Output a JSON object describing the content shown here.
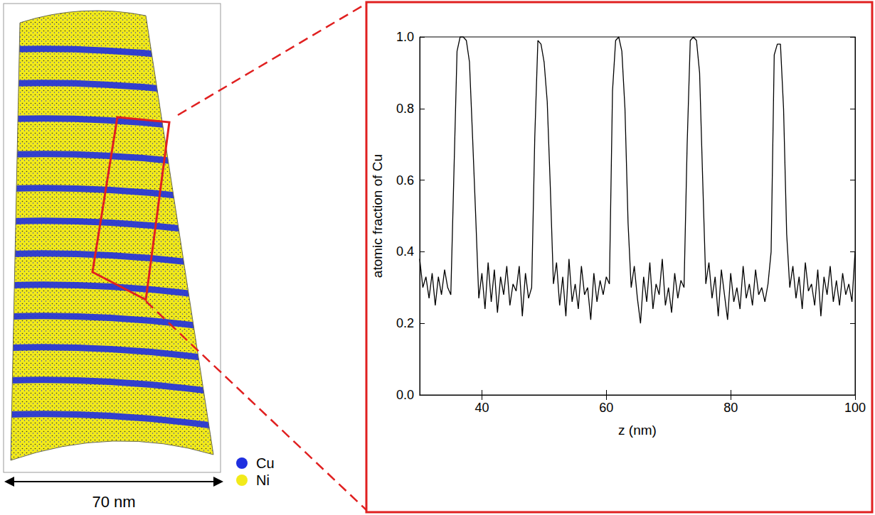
{
  "chart_data": {
    "type": "line",
    "x_label": "z (nm)",
    "y_label": "atomic fraction of Cu",
    "color": "#000000",
    "x": [
      30,
      30.5,
      31,
      31.5,
      32,
      32.5,
      33,
      33.5,
      34,
      34.5,
      35,
      35.5,
      36,
      36.5,
      37,
      37.5,
      38,
      38.5,
      39,
      39.5,
      40,
      40.5,
      41,
      41.5,
      42,
      42.5,
      43,
      43.5,
      44,
      44.5,
      45,
      45.5,
      46,
      46.5,
      47,
      47.5,
      48,
      48.5,
      49,
      49.5,
      50,
      50.5,
      51,
      51.5,
      52,
      52.5,
      53,
      53.5,
      54,
      54.5,
      55,
      55.5,
      56,
      56.5,
      57,
      57.5,
      58,
      58.5,
      59,
      59.5,
      60,
      60.5,
      61,
      61.5,
      62,
      62.5,
      63,
      63.5,
      64,
      64.5,
      65,
      65.5,
      66,
      66.5,
      67,
      67.5,
      68,
      68.5,
      69,
      69.5,
      70,
      70.5,
      71,
      71.5,
      72,
      72.5,
      73,
      73.5,
      74,
      74.5,
      75,
      75.5,
      76,
      76.5,
      77,
      77.5,
      78,
      78.5,
      79,
      79.5,
      80,
      80.5,
      81,
      81.5,
      82,
      82.5,
      83,
      83.5,
      84,
      84.5,
      85,
      85.5,
      86,
      86.5,
      87,
      87.5,
      88,
      88.5,
      89,
      89.5,
      90,
      90.5,
      91,
      91.5,
      92,
      92.5,
      93,
      93.5,
      94,
      94.5,
      95,
      95.5,
      96,
      96.5,
      97,
      97.5,
      98,
      98.5,
      99,
      99.5,
      100
    ],
    "values": [
      0.38,
      0.3,
      0.33,
      0.27,
      0.34,
      0.25,
      0.33,
      0.28,
      0.35,
      0.3,
      0.28,
      0.62,
      0.96,
      1.0,
      1.0,
      0.99,
      0.93,
      0.72,
      0.5,
      0.27,
      0.34,
      0.24,
      0.37,
      0.26,
      0.35,
      0.23,
      0.33,
      0.28,
      0.36,
      0.25,
      0.31,
      0.29,
      0.36,
      0.22,
      0.34,
      0.27,
      0.3,
      0.72,
      0.99,
      0.98,
      0.93,
      0.82,
      0.58,
      0.31,
      0.37,
      0.25,
      0.33,
      0.22,
      0.38,
      0.26,
      0.31,
      0.24,
      0.36,
      0.28,
      0.3,
      0.21,
      0.34,
      0.26,
      0.32,
      0.28,
      0.33,
      0.31,
      0.85,
      0.99,
      1.0,
      0.96,
      0.8,
      0.48,
      0.3,
      0.36,
      0.27,
      0.2,
      0.33,
      0.26,
      0.37,
      0.24,
      0.31,
      0.28,
      0.38,
      0.25,
      0.3,
      0.23,
      0.34,
      0.27,
      0.32,
      0.3,
      0.7,
      0.99,
      1.0,
      0.99,
      0.9,
      0.6,
      0.31,
      0.37,
      0.27,
      0.33,
      0.22,
      0.35,
      0.28,
      0.21,
      0.34,
      0.26,
      0.3,
      0.24,
      0.36,
      0.27,
      0.31,
      0.25,
      0.35,
      0.28,
      0.3,
      0.26,
      0.31,
      0.4,
      0.95,
      0.98,
      0.98,
      0.8,
      0.45,
      0.3,
      0.36,
      0.27,
      0.33,
      0.24,
      0.37,
      0.29,
      0.31,
      0.25,
      0.35,
      0.22,
      0.33,
      0.28,
      0.36,
      0.26,
      0.32,
      0.25,
      0.34,
      0.28,
      0.31,
      0.26,
      0.4
    ],
    "xlim": [
      30,
      100
    ],
    "xticks": [
      40,
      60,
      80,
      100
    ],
    "ylim": [
      0,
      1
    ],
    "yticks": [
      {
        "value": 0,
        "label": "0.0"
      },
      0.2,
      0.4,
      0.6,
      0.8,
      {
        "value": 1,
        "label": "1.0"
      }
    ],
    "grid": false
  },
  "reconstruction": {
    "scale_label": "70 nm",
    "legend": [
      {
        "name": "Cu",
        "color": "#1f2fe0"
      },
      {
        "name": "Ni",
        "color": "#f2ea1a"
      }
    ]
  }
}
